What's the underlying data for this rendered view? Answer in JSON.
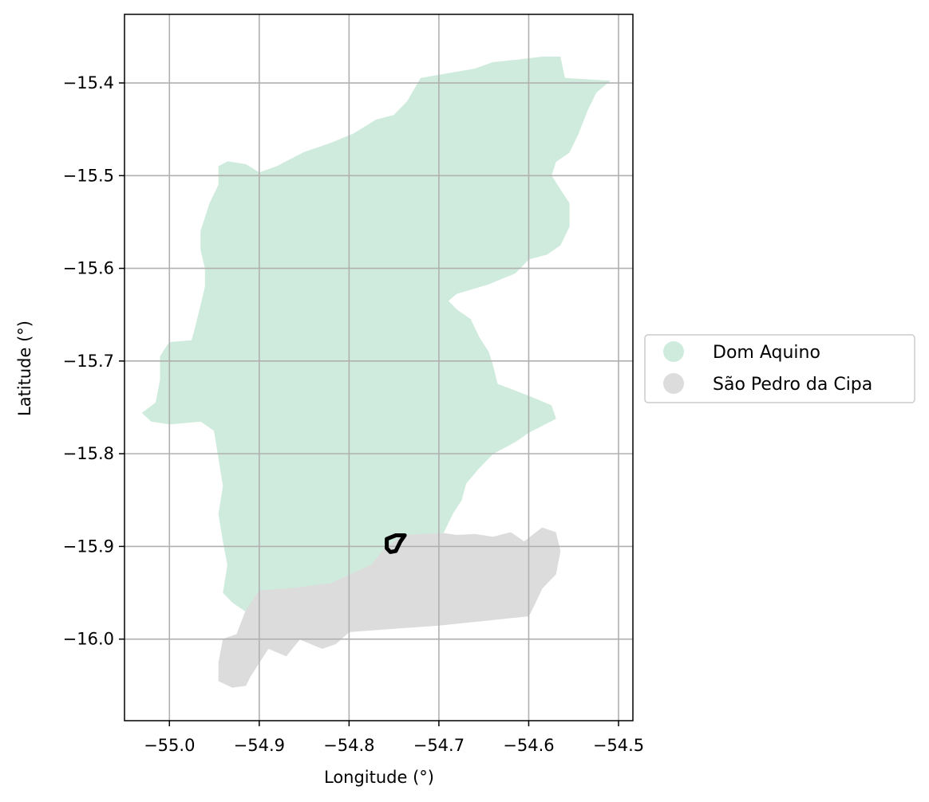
{
  "map": {
    "xlabel": "Longitude (°)",
    "ylabel": "Latitude (°)",
    "xlim": [
      -55.05,
      -54.484
    ],
    "ylim": [
      -16.088,
      -15.326
    ],
    "x_ticks": [
      {
        "value": -55.0,
        "label": "−55.0"
      },
      {
        "value": -54.9,
        "label": "−54.9"
      },
      {
        "value": -54.8,
        "label": "−54.8"
      },
      {
        "value": -54.7,
        "label": "−54.7"
      },
      {
        "value": -54.6,
        "label": "−54.6"
      },
      {
        "value": -54.5,
        "label": "−54.5"
      }
    ],
    "y_ticks": [
      {
        "value": -15.4,
        "label": "−15.4"
      },
      {
        "value": -15.5,
        "label": "−15.5"
      },
      {
        "value": -15.6,
        "label": "−15.6"
      },
      {
        "value": -15.7,
        "label": "−15.7"
      },
      {
        "value": -15.8,
        "label": "−15.8"
      },
      {
        "value": -15.9,
        "label": "−15.9"
      },
      {
        "value": -16.0,
        "label": "−16.0"
      }
    ],
    "grid": true,
    "legend_position": "center-right, outside plot",
    "regions": [
      {
        "name": "Dom Aquino",
        "color": "#cfebdd",
        "coords": [
          [
            -54.72,
            -15.395
          ],
          [
            -54.69,
            -15.39
          ],
          [
            -54.66,
            -15.385
          ],
          [
            -54.64,
            -15.378
          ],
          [
            -54.61,
            -15.375
          ],
          [
            -54.585,
            -15.372
          ],
          [
            -54.565,
            -15.372
          ],
          [
            -54.56,
            -15.395
          ],
          [
            -54.51,
            -15.398
          ],
          [
            -54.525,
            -15.41
          ],
          [
            -54.535,
            -15.43
          ],
          [
            -54.545,
            -15.455
          ],
          [
            -54.555,
            -15.475
          ],
          [
            -54.57,
            -15.485
          ],
          [
            -54.575,
            -15.5
          ],
          [
            -54.565,
            -15.515
          ],
          [
            -54.555,
            -15.53
          ],
          [
            -54.555,
            -15.555
          ],
          [
            -54.565,
            -15.575
          ],
          [
            -54.58,
            -15.585
          ],
          [
            -54.6,
            -15.59
          ],
          [
            -54.615,
            -15.605
          ],
          [
            -54.645,
            -15.617
          ],
          [
            -54.68,
            -15.627
          ],
          [
            -54.69,
            -15.635
          ],
          [
            -54.68,
            -15.645
          ],
          [
            -54.665,
            -15.655
          ],
          [
            -54.655,
            -15.675
          ],
          [
            -54.645,
            -15.69
          ],
          [
            -54.64,
            -15.705
          ],
          [
            -54.635,
            -15.725
          ],
          [
            -54.6,
            -15.738
          ],
          [
            -54.575,
            -15.748
          ],
          [
            -54.57,
            -15.762
          ],
          [
            -54.6,
            -15.777
          ],
          [
            -54.615,
            -15.787
          ],
          [
            -54.64,
            -15.8
          ],
          [
            -54.655,
            -15.815
          ],
          [
            -54.67,
            -15.832
          ],
          [
            -54.675,
            -15.85
          ],
          [
            -54.685,
            -15.865
          ],
          [
            -54.695,
            -15.885
          ],
          [
            -54.74,
            -15.888
          ],
          [
            -54.76,
            -15.902
          ],
          [
            -54.775,
            -15.92
          ],
          [
            -54.82,
            -15.94
          ],
          [
            -54.86,
            -15.945
          ],
          [
            -54.9,
            -15.948
          ],
          [
            -54.915,
            -15.97
          ],
          [
            -54.93,
            -15.96
          ],
          [
            -54.94,
            -15.95
          ],
          [
            -54.935,
            -15.92
          ],
          [
            -54.94,
            -15.895
          ],
          [
            -54.945,
            -15.865
          ],
          [
            -54.94,
            -15.835
          ],
          [
            -54.945,
            -15.805
          ],
          [
            -54.95,
            -15.775
          ],
          [
            -54.965,
            -15.765
          ],
          [
            -55.0,
            -15.768
          ],
          [
            -55.02,
            -15.765
          ],
          [
            -55.03,
            -15.756
          ],
          [
            -55.015,
            -15.745
          ],
          [
            -55.01,
            -15.72
          ],
          [
            -55.01,
            -15.695
          ],
          [
            -55.0,
            -15.68
          ],
          [
            -54.975,
            -15.678
          ],
          [
            -54.97,
            -15.66
          ],
          [
            -54.965,
            -15.64
          ],
          [
            -54.96,
            -15.62
          ],
          [
            -54.96,
            -15.6
          ],
          [
            -54.965,
            -15.58
          ],
          [
            -54.965,
            -15.56
          ],
          [
            -54.96,
            -15.545
          ],
          [
            -54.955,
            -15.53
          ],
          [
            -54.945,
            -15.51
          ],
          [
            -54.945,
            -15.49
          ],
          [
            -54.935,
            -15.485
          ],
          [
            -54.915,
            -15.488
          ],
          [
            -54.9,
            -15.497
          ],
          [
            -54.88,
            -15.49
          ],
          [
            -54.85,
            -15.475
          ],
          [
            -54.82,
            -15.465
          ],
          [
            -54.795,
            -15.455
          ],
          [
            -54.77,
            -15.44
          ],
          [
            -54.75,
            -15.435
          ],
          [
            -54.735,
            -15.42
          ]
        ]
      },
      {
        "name": "São Pedro da Cipa",
        "color": "#dcdcdc",
        "coords": [
          [
            -54.695,
            -15.886
          ],
          [
            -54.68,
            -15.888
          ],
          [
            -54.66,
            -15.887
          ],
          [
            -54.64,
            -15.89
          ],
          [
            -54.62,
            -15.885
          ],
          [
            -54.605,
            -15.895
          ],
          [
            -54.585,
            -15.88
          ],
          [
            -54.57,
            -15.885
          ],
          [
            -54.565,
            -15.905
          ],
          [
            -54.57,
            -15.93
          ],
          [
            -54.585,
            -15.945
          ],
          [
            -54.595,
            -15.965
          ],
          [
            -54.6,
            -15.975
          ],
          [
            -54.7,
            -15.985
          ],
          [
            -54.8,
            -15.992
          ],
          [
            -54.815,
            -16.005
          ],
          [
            -54.83,
            -16.01
          ],
          [
            -54.855,
            -16.0
          ],
          [
            -54.87,
            -16.018
          ],
          [
            -54.89,
            -16.01
          ],
          [
            -54.91,
            -16.04
          ],
          [
            -54.915,
            -16.05
          ],
          [
            -54.93,
            -16.052
          ],
          [
            -54.945,
            -16.045
          ],
          [
            -54.945,
            -16.025
          ],
          [
            -54.94,
            -16.0
          ],
          [
            -54.925,
            -15.995
          ],
          [
            -54.915,
            -15.97
          ],
          [
            -54.9,
            -15.948
          ],
          [
            -54.86,
            -15.945
          ],
          [
            -54.82,
            -15.94
          ],
          [
            -54.775,
            -15.92
          ],
          [
            -54.76,
            -15.902
          ],
          [
            -54.74,
            -15.888
          ]
        ]
      }
    ],
    "highlight": {
      "name": "study area outline",
      "color": "#000000",
      "coords": [
        [
          -54.758,
          -15.892
        ],
        [
          -54.748,
          -15.888
        ],
        [
          -54.738,
          -15.888
        ],
        [
          -54.743,
          -15.895
        ],
        [
          -54.748,
          -15.905
        ],
        [
          -54.754,
          -15.906
        ],
        [
          -54.758,
          -15.902
        ]
      ]
    }
  }
}
